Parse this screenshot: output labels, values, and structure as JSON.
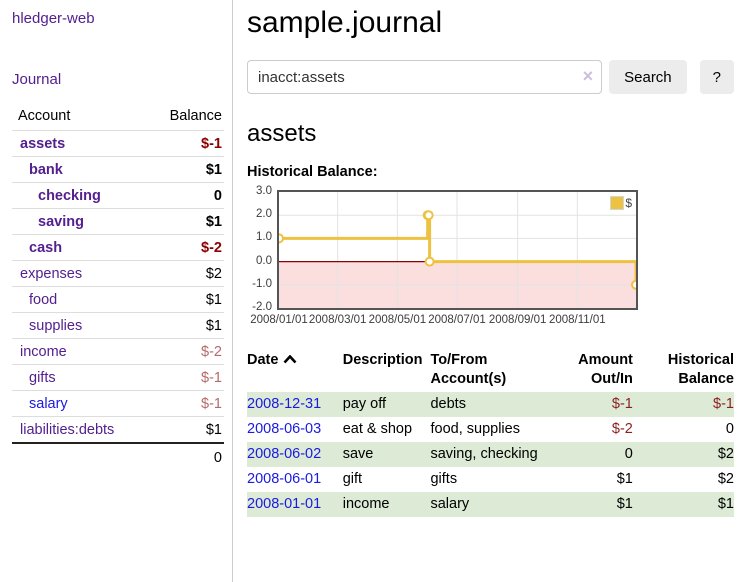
{
  "colors": {
    "purple": "#54208f",
    "blue_link": "#1a1ae0",
    "negative_bold": "#8b0000",
    "negative_muted": "#b46a6a",
    "negative_table": "#8b1f1f",
    "row_highlight_green": "#dcead6",
    "chart_gold": "#edc240",
    "chart_negative_fill": "#fbdfdf",
    "chart_zero_line": "#8b0000",
    "chart_border": "#545454"
  },
  "sidebar": {
    "app_title": "hledger-web",
    "journal_link": "Journal",
    "account_header": "Account",
    "balance_header": "Balance",
    "accounts": [
      {
        "name": "assets",
        "depth": 1,
        "bold": true,
        "balance": "$-1",
        "tone": "neg-strong"
      },
      {
        "name": "bank",
        "depth": 2,
        "bold": true,
        "balance": "$1",
        "tone": "plain"
      },
      {
        "name": "checking",
        "depth": 3,
        "bold": true,
        "balance": "0",
        "tone": "plain"
      },
      {
        "name": "saving",
        "depth": 3,
        "bold": true,
        "balance": "$1",
        "tone": "plain"
      },
      {
        "name": "cash",
        "depth": 2,
        "bold": true,
        "balance": "$-2",
        "tone": "neg-strong"
      },
      {
        "name": "expenses",
        "depth": 1,
        "bold": false,
        "balance": "$2",
        "tone": "plain"
      },
      {
        "name": "food",
        "depth": 2,
        "bold": false,
        "balance": "$1",
        "tone": "plain"
      },
      {
        "name": "supplies",
        "depth": 2,
        "bold": false,
        "balance": "$1",
        "tone": "plain"
      },
      {
        "name": "income",
        "depth": 1,
        "bold": false,
        "balance": "$-2",
        "tone": "neg-muted"
      },
      {
        "name": "gifts",
        "depth": 2,
        "bold": false,
        "balance": "$-1",
        "tone": "neg-muted"
      },
      {
        "name": "salary",
        "depth": 2,
        "bold": false,
        "balance": "$-1",
        "tone": "neg-muted",
        "unvisited": true
      },
      {
        "name": "liabilities:debts",
        "depth": 1,
        "bold": false,
        "balance": "$1",
        "tone": "plain"
      }
    ],
    "total": "0"
  },
  "header": {
    "title": "sample.journal"
  },
  "search": {
    "query": "inacct:assets",
    "clear_icon": "×",
    "button_label": "Search",
    "help_label": "?"
  },
  "account_page": {
    "heading": "assets",
    "chart_title": "Historical Balance:"
  },
  "chart_data": {
    "type": "line",
    "step": true,
    "title": "Historical Balance",
    "series": [
      {
        "name": "$",
        "color": "#edc240",
        "points": [
          {
            "date": "2008-01-01",
            "value": 1
          },
          {
            "date": "2008-06-01",
            "value": 2
          },
          {
            "date": "2008-06-02",
            "value": 2
          },
          {
            "date": "2008-06-03",
            "value": 0
          },
          {
            "date": "2008-12-31",
            "value": -1
          }
        ]
      }
    ],
    "x_ticks": [
      {
        "date": "2008-01-01",
        "label": "2008/01/01"
      },
      {
        "date": "2008-03-01",
        "label": "2008/03/01"
      },
      {
        "date": "2008-05-01",
        "label": "2008/05/01"
      },
      {
        "date": "2008-07-01",
        "label": "2008/07/01"
      },
      {
        "date": "2008-09-01",
        "label": "2008/09/01"
      },
      {
        "date": "2008-11-01",
        "label": "2008/11/01"
      }
    ],
    "y_ticks": [
      {
        "value": 3,
        "label": "3.0"
      },
      {
        "value": 2,
        "label": "2.0"
      },
      {
        "value": 1,
        "label": "1.0"
      },
      {
        "value": 0,
        "label": "0.0"
      },
      {
        "value": -1,
        "label": "-1.0"
      },
      {
        "value": -2,
        "label": "-2.0"
      }
    ],
    "ylim": [
      -2,
      3
    ],
    "x_domain": [
      "2008-01-01",
      "2008-12-31"
    ],
    "grid": true,
    "negative_region_shaded": true,
    "legend": {
      "label": "$",
      "position": "top-right"
    }
  },
  "transactions": {
    "headers": [
      {
        "label": "Date",
        "align": "left",
        "sorted": "asc"
      },
      {
        "label": "Description",
        "align": "left"
      },
      {
        "label": "To/From\nAccount(s)",
        "align": "left"
      },
      {
        "label": "Amount\nOut/In",
        "align": "right"
      },
      {
        "label": "Historical\nBalance",
        "align": "right"
      }
    ],
    "rows": [
      {
        "date": "2008-12-31",
        "description": "pay off",
        "accounts": "debts",
        "amount": "$-1",
        "amount_neg": true,
        "balance": "$-1",
        "balance_neg": true,
        "highlight": true
      },
      {
        "date": "2008-06-03",
        "description": "eat & shop",
        "accounts": "food, supplies",
        "amount": "$-2",
        "amount_neg": true,
        "balance": "0",
        "balance_neg": false,
        "highlight": false
      },
      {
        "date": "2008-06-02",
        "description": "save",
        "accounts": "saving, checking",
        "amount": "0",
        "amount_neg": false,
        "balance": "$2",
        "balance_neg": false,
        "highlight": true
      },
      {
        "date": "2008-06-01",
        "description": "gift",
        "accounts": "gifts",
        "amount": "$1",
        "amount_neg": false,
        "balance": "$2",
        "balance_neg": false,
        "highlight": false
      },
      {
        "date": "2008-01-01",
        "description": "income",
        "accounts": "salary",
        "amount": "$1",
        "amount_neg": false,
        "balance": "$1",
        "balance_neg": false,
        "highlight": true
      }
    ]
  }
}
